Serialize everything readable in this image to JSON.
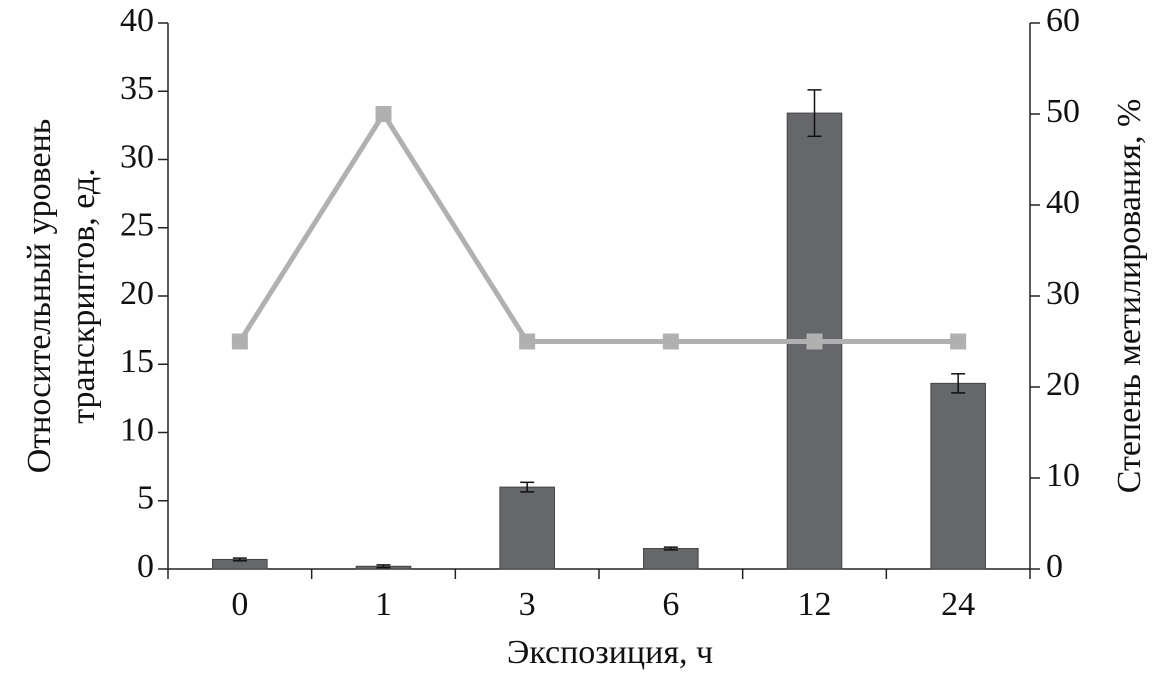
{
  "chart_data": {
    "type": "bar_line",
    "categories": [
      "0",
      "1",
      "3",
      "6",
      "12",
      "24"
    ],
    "series": [
      {
        "type": "bar",
        "color": "#66676b",
        "values": [
          0.7,
          0.2,
          6.0,
          1.5,
          33.4,
          13.6
        ],
        "errors": [
          0.1,
          0.1,
          0.35,
          0.1,
          1.7,
          0.7
        ]
      },
      {
        "type": "line",
        "axis": "y2",
        "color": "#b0b0b0",
        "values": [
          25,
          50,
          25,
          25,
          25,
          25
        ]
      }
    ],
    "xlabel": "Экспозиция, ч",
    "ylabel": [
      "Относительный уровень",
      "транскриптов, ед."
    ],
    "y2label": "Степень метилирования, %",
    "ylim": [
      0,
      40
    ],
    "yticks": [
      0,
      5,
      10,
      15,
      20,
      25,
      30,
      35,
      40
    ],
    "y2lim": [
      0,
      60
    ],
    "y2ticks": [
      0,
      10,
      20,
      30,
      40,
      50,
      60
    ]
  }
}
